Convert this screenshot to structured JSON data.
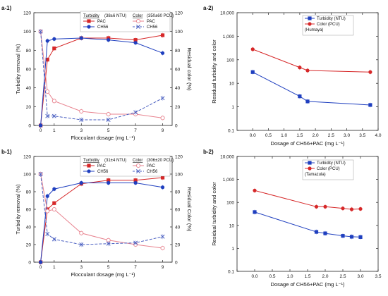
{
  "chart_data": [
    {
      "panel": "a-1)",
      "type": "line",
      "xlabel": "Flocculant dosage (mg L⁻¹)",
      "ylabel_left": "Turbidity removal (%)",
      "ylabel_right": "Residual color (%)",
      "x_ticks": [
        0,
        1,
        3,
        5,
        7,
        9
      ],
      "ylim_left": [
        0,
        120
      ],
      "ylim_right": [
        0,
        120
      ],
      "y_ticks": [
        0,
        20,
        40,
        60,
        80,
        100,
        120
      ],
      "legend": {
        "placement": "top-right",
        "turbidity_title": "Turbidity",
        "turbidity_detail": "(38±6 NTU)",
        "color_title": "Color",
        "color_detail": "(350±60 PCU)"
      },
      "series": [
        {
          "name": "PAC",
          "group": "turbidity",
          "axis": "left",
          "color": "#d62728",
          "marker": "square",
          "dash": false,
          "x": [
            0,
            0.5,
            1,
            3,
            5,
            7,
            9
          ],
          "y": [
            0,
            70,
            82,
            93,
            93,
            91,
            96
          ]
        },
        {
          "name": "CH56",
          "group": "turbidity",
          "axis": "left",
          "color": "#1f3fbf",
          "marker": "circle",
          "dash": false,
          "x": [
            0,
            0.5,
            1,
            3,
            5,
            7,
            9
          ],
          "y": [
            0,
            90,
            92,
            93,
            91,
            88,
            77
          ]
        },
        {
          "name": "PAC",
          "group": "color",
          "axis": "right",
          "color": "#e8838f",
          "marker": "circle-open",
          "dash": false,
          "x": [
            0,
            0.5,
            1,
            3,
            5,
            7,
            9
          ],
          "y": [
            100,
            36,
            26,
            15,
            12,
            12,
            8
          ]
        },
        {
          "name": "CH56",
          "group": "color",
          "axis": "right",
          "color": "#4a5fc1",
          "marker": "x",
          "dash": true,
          "x": [
            0,
            0.5,
            1,
            3,
            5,
            7,
            9
          ],
          "y": [
            100,
            10,
            10,
            6,
            6,
            14,
            29
          ]
        }
      ]
    },
    {
      "panel": "a-2)",
      "type": "line",
      "yscale": "log",
      "xlabel": "Dosage of CH56+PAC (mg L⁻¹)",
      "ylabel": "Residual turbidity and color",
      "xlim": [
        -0.5,
        4.0
      ],
      "x_ticks": [
        0.0,
        0.5,
        1.0,
        1.5,
        2.0,
        2.5,
        3.0,
        3.5,
        4.0
      ],
      "x_tick_labels": [
        "0.0",
        "0.5",
        "1.0",
        "1.5",
        "2.0",
        "2.5",
        "3.0",
        "3.5",
        "4.0"
      ],
      "ylim": [
        0.1,
        10000
      ],
      "y_ticks": [
        0.1,
        1,
        10,
        100,
        1000,
        10000
      ],
      "y_tick_labels": [
        "0.1",
        "1",
        "10",
        "100",
        "1,000",
        "10,000"
      ],
      "legend": {
        "placement": "top-right",
        "note": "(Humaya)"
      },
      "series": [
        {
          "name": "Turbidity (NTU)",
          "color": "#1f3fbf",
          "marker": "square",
          "x": [
            0,
            1.5,
            1.75,
            3.75
          ],
          "y": [
            30,
            2.8,
            1.7,
            1.2
          ]
        },
        {
          "name": "Color (PCU)",
          "color": "#d62728",
          "marker": "circle",
          "x": [
            0,
            1.5,
            1.75,
            3.75
          ],
          "y": [
            280,
            47,
            35,
            30
          ]
        }
      ]
    },
    {
      "panel": "b-1)",
      "type": "line",
      "xlabel": "Flocculant dosage (mg L⁻¹)",
      "ylabel_left": "Turbidity removal (%)",
      "ylabel_right": "Residual Color (%)",
      "x_ticks": [
        0,
        1,
        3,
        5,
        7,
        9
      ],
      "ylim_left": [
        0,
        120
      ],
      "ylim_right": [
        0,
        120
      ],
      "y_ticks": [
        0,
        20,
        40,
        60,
        80,
        100,
        120
      ],
      "legend": {
        "placement": "top-right",
        "turbidity_title": "Turbidity",
        "turbidity_detail": "(31±4 NTU)",
        "color_title": "Color",
        "color_detail": "(306±20 PCU)"
      },
      "series": [
        {
          "name": "PAC",
          "group": "turbidity",
          "axis": "left",
          "color": "#d62728",
          "marker": "square",
          "dash": false,
          "x": [
            0,
            0.5,
            1,
            3,
            5,
            7,
            9
          ],
          "y": [
            0,
            60,
            67,
            89,
            93,
            93,
            96
          ]
        },
        {
          "name": "CH56",
          "group": "turbidity",
          "axis": "left",
          "color": "#1f3fbf",
          "marker": "circle",
          "dash": false,
          "x": [
            0,
            0.5,
            1,
            3,
            5,
            7,
            9
          ],
          "y": [
            0,
            75,
            83,
            90,
            90,
            90,
            85
          ]
        },
        {
          "name": "PAC",
          "group": "color",
          "axis": "right",
          "color": "#e8838f",
          "marker": "circle-open",
          "dash": false,
          "x": [
            0,
            0.5,
            1,
            3,
            5,
            7,
            9
          ],
          "y": [
            100,
            58,
            60,
            33,
            25,
            20,
            16
          ]
        },
        {
          "name": "CH56",
          "group": "color",
          "axis": "right",
          "color": "#4a5fc1",
          "marker": "x",
          "dash": true,
          "x": [
            0,
            0.5,
            1,
            3,
            5,
            7,
            9
          ],
          "y": [
            100,
            32,
            26,
            20,
            21,
            22,
            29
          ]
        }
      ]
    },
    {
      "panel": "b-2)",
      "type": "line",
      "yscale": "log",
      "xlabel": "Dosage of CH56+PAC (mg L⁻¹)",
      "ylabel": "Residual turbidity and color",
      "xlim": [
        -0.5,
        3.5
      ],
      "x_ticks": [
        -0.5,
        0.0,
        0.5,
        1.0,
        1.5,
        2.0,
        2.5,
        3.0,
        3.5
      ],
      "x_tick_labels": [
        "",
        "0.0",
        "0.5",
        "1.0",
        "1.5",
        "2.0",
        "2.5",
        "3.0",
        "3.5"
      ],
      "ylim": [
        0.1,
        10000
      ],
      "y_ticks": [
        0.1,
        1,
        10,
        100,
        1000,
        10000
      ],
      "y_tick_labels": [
        "0.1",
        "1",
        "10",
        "100",
        "1,000",
        "10,000"
      ],
      "legend": {
        "placement": "top-right",
        "note": "(Tamazula)"
      },
      "series": [
        {
          "name": "Turbidity (NTU)",
          "color": "#1f3fbf",
          "marker": "square",
          "x": [
            0,
            1.75,
            2.0,
            2.5,
            2.75,
            3.0
          ],
          "y": [
            38,
            5.2,
            4.5,
            3.5,
            3.2,
            3.1
          ]
        },
        {
          "name": "Color (PCU)",
          "color": "#d62728",
          "marker": "circle",
          "x": [
            0,
            1.75,
            2.0,
            2.5,
            2.75,
            3.0
          ],
          "y": [
            330,
            65,
            65,
            55,
            50,
            52
          ]
        }
      ]
    }
  ]
}
